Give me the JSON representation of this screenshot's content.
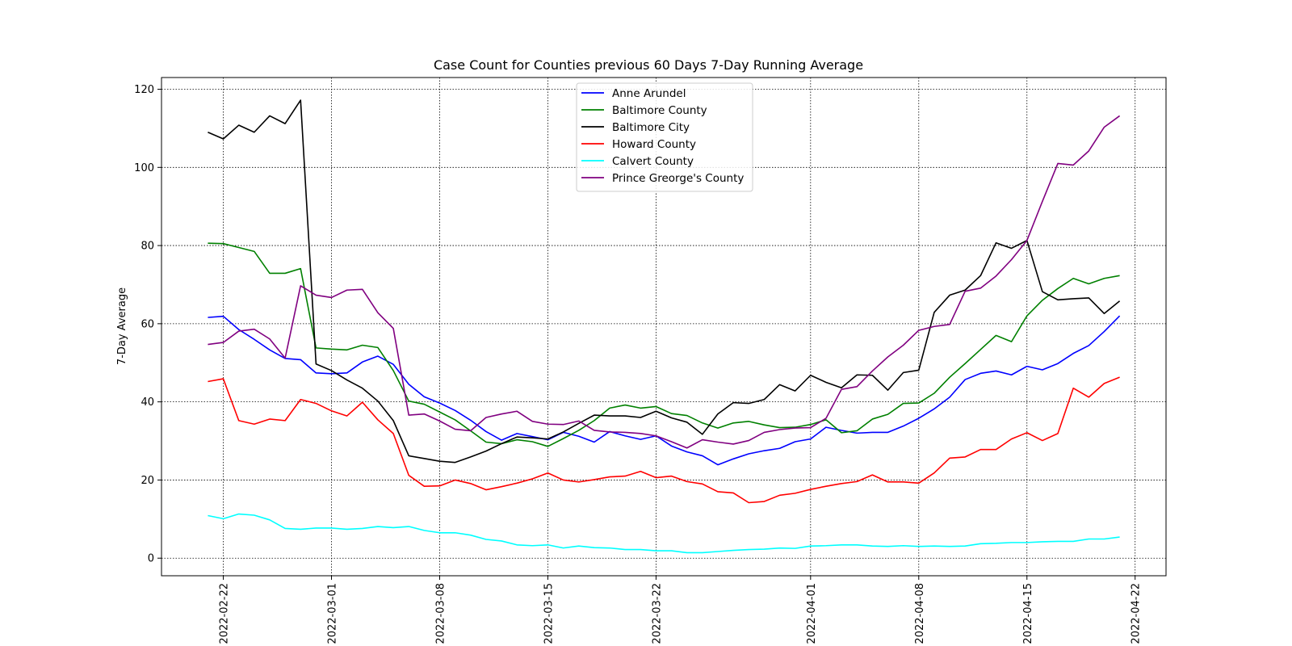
{
  "chart_data": {
    "type": "line",
    "title": "Case Count for Counties previous 60 Days 7-Day Running Average",
    "xlabel": "",
    "ylabel": "7-Day Average",
    "x_start": "2022-02-21",
    "x_end": "2022-04-20",
    "xlim": [
      "2022-02-18",
      "2022-04-24"
    ],
    "ylim": [
      -4.5,
      123
    ],
    "x_ticks": [
      "2022-02-22",
      "2022-03-01",
      "2022-03-08",
      "2022-03-15",
      "2022-03-22",
      "2022-04-01",
      "2022-04-08",
      "2022-04-15",
      "2022-04-22"
    ],
    "y_ticks": [
      0,
      20,
      40,
      60,
      80,
      100,
      120
    ],
    "grid": true,
    "legend_position": "top-center",
    "series": [
      {
        "name": "Anne Arundel",
        "color": "#0000ff",
        "values": [
          61.6,
          61.9,
          58.5,
          56,
          53.3,
          51.1,
          50.8,
          47.4,
          47.2,
          47.4,
          50.2,
          51.7,
          49.6,
          44.5,
          41.3,
          39.7,
          37.8,
          35.3,
          32.4,
          30.2,
          31.9,
          31.1,
          30.3,
          32.2,
          31.2,
          29.7,
          32.4,
          31.3,
          30.4,
          31.3,
          28.7,
          27.2,
          26.2,
          23.9,
          25.4,
          26.7,
          27.5,
          28.1,
          29.8,
          30.5,
          33.5,
          32.7,
          32,
          32.2,
          32.2,
          33.8,
          35.8,
          38.2,
          41.2,
          45.7,
          47.3,
          47.9,
          46.9,
          49.1,
          48.2,
          49.8,
          52.4,
          54.4,
          58,
          62
        ]
      },
      {
        "name": "Baltimore County",
        "color": "#008000",
        "values": [
          80.6,
          80.5,
          79.5,
          78.5,
          72.9,
          72.9,
          74.1,
          53.8,
          53.5,
          53.3,
          54.5,
          53.9,
          48,
          40.2,
          39.4,
          37.4,
          35.4,
          32.6,
          29.7,
          29.3,
          30.3,
          29.8,
          28.6,
          30.6,
          32.7,
          35.2,
          38.4,
          39.2,
          38.4,
          38.8,
          37,
          36.5,
          34.6,
          33.3,
          34.6,
          35,
          34.1,
          33.4,
          33.5,
          34.2,
          35.4,
          32.1,
          32.6,
          35.6,
          36.8,
          39.6,
          39.7,
          42.2,
          46.3,
          49.8,
          53.4,
          57,
          55.4,
          62,
          66,
          69,
          71.6,
          70.2,
          71.6,
          72.3
        ]
      },
      {
        "name": "Baltimore City",
        "color": "#000000",
        "values": [
          109,
          107.3,
          110.8,
          109,
          113.2,
          111.2,
          117.2,
          49.7,
          48,
          45.6,
          43.5,
          40.2,
          35.2,
          26.2,
          25.5,
          24.8,
          24.5,
          25.9,
          27.4,
          29.3,
          31,
          30.8,
          30.5,
          32.3,
          34.5,
          36.6,
          36.4,
          36.4,
          36,
          37.6,
          35.9,
          34.8,
          31.7,
          36.9,
          39.8,
          39.6,
          40.6,
          44.4,
          42.8,
          46.8,
          45,
          43.6,
          46.9,
          46.8,
          43,
          47.5,
          48.1,
          62.9,
          67.3,
          68.6,
          72.3,
          80.7,
          79.3,
          81.3,
          68.2,
          66.1,
          66.4,
          66.6,
          62.6,
          65.8
        ]
      },
      {
        "name": "Howard County",
        "color": "#ff0000",
        "values": [
          45.2,
          45.9,
          35.2,
          34.3,
          35.6,
          35.2,
          40.6,
          39.6,
          37.7,
          36.4,
          39.9,
          35.4,
          31.9,
          21.2,
          18.4,
          18.5,
          20,
          19.1,
          17.5,
          18.3,
          19.2,
          20.3,
          21.8,
          20,
          19.5,
          20.1,
          20.8,
          21,
          22.2,
          20.6,
          21,
          19.6,
          19,
          17,
          16.7,
          14.2,
          14.5,
          16.1,
          16.6,
          17.6,
          18.4,
          19.1,
          19.6,
          21.3,
          19.5,
          19.5,
          19.2,
          21.8,
          25.6,
          25.9,
          27.8,
          27.8,
          30.5,
          32.1,
          30.1,
          31.9,
          43.5,
          41.2,
          44.7,
          46.3
        ]
      },
      {
        "name": "Calvert County",
        "color": "#00ffff",
        "values": [
          10.9,
          10.1,
          11.3,
          11,
          9.8,
          7.6,
          7.4,
          7.7,
          7.7,
          7.4,
          7.6,
          8.1,
          7.8,
          8.1,
          7.1,
          6.5,
          6.5,
          5.9,
          4.8,
          4.4,
          3.4,
          3.2,
          3.4,
          2.6,
          3.1,
          2.7,
          2.6,
          2.2,
          2.2,
          1.9,
          1.9,
          1.4,
          1.4,
          1.7,
          2,
          2.2,
          2.3,
          2.6,
          2.5,
          3.1,
          3.2,
          3.4,
          3.4,
          3.1,
          3,
          3.2,
          3,
          3.1,
          3,
          3.1,
          3.7,
          3.8,
          4,
          4,
          4.2,
          4.3,
          4.3,
          4.9,
          4.9,
          5.4
        ]
      },
      {
        "name": "Prince Greorge's County",
        "color": "#800080",
        "values": [
          54.7,
          55.2,
          58.1,
          58.6,
          56.1,
          51.2,
          69.7,
          67.3,
          66.7,
          68.6,
          68.8,
          62.8,
          58.8,
          36.6,
          36.9,
          35.1,
          33,
          32.6,
          36,
          36.9,
          37.6,
          35,
          34.3,
          34.2,
          35.1,
          32.7,
          32.3,
          32.2,
          31.9,
          31.3,
          29.8,
          28.2,
          30.3,
          29.7,
          29.2,
          30.1,
          32.2,
          32.9,
          33.3,
          33.4,
          35.8,
          43.2,
          43.9,
          47.9,
          51.5,
          54.5,
          58.3,
          59.3,
          59.8,
          68.3,
          69.1,
          72.2,
          76.4,
          81.3,
          91.3,
          101,
          100.6,
          104.2,
          110.3,
          113.2
        ]
      }
    ]
  }
}
